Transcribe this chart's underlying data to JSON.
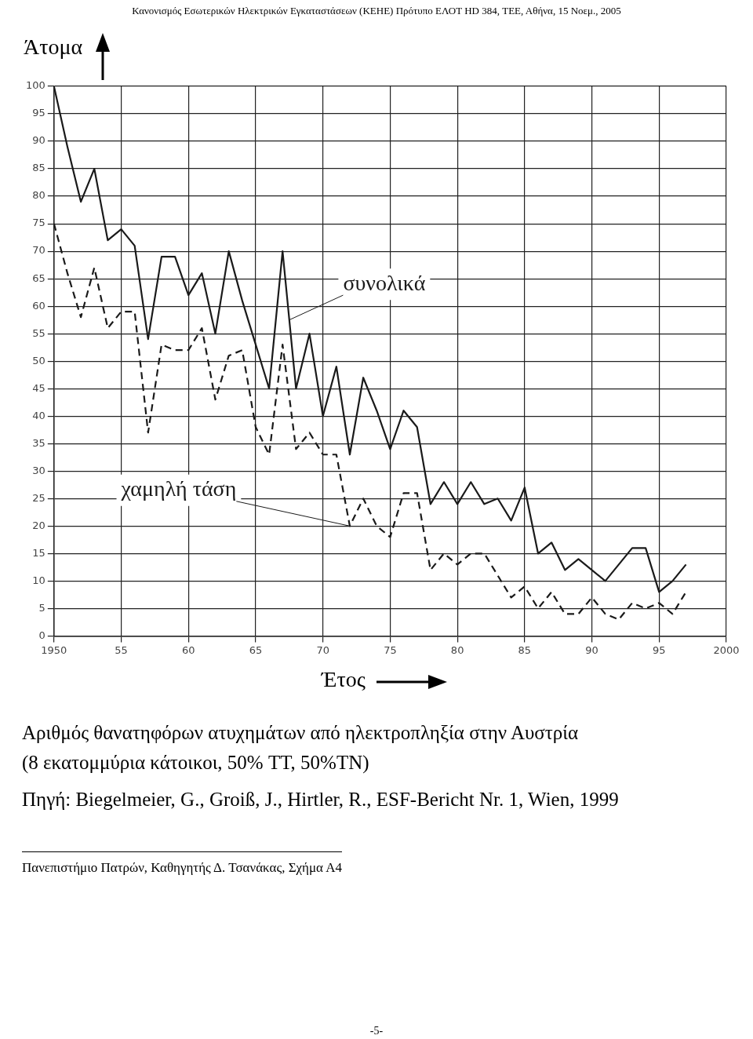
{
  "chart_data": {
    "type": "line",
    "title": "Αριθμός θανατηφόρων ατυχημάτων από ηλεκτροπληξία στην Αυστρία",
    "subtitle": "(8 εκατομμύρια κάτοικοι, 50% TT, 50%TN)",
    "xlabel": "Έτος",
    "ylabel": "Άτομα",
    "x": [
      1950,
      1951,
      1952,
      1953,
      1954,
      1955,
      1956,
      1957,
      1958,
      1959,
      1960,
      1961,
      1962,
      1963,
      1964,
      1965,
      1966,
      1967,
      1968,
      1969,
      1970,
      1971,
      1972,
      1973,
      1974,
      1975,
      1976,
      1977,
      1978,
      1979,
      1980,
      1981,
      1982,
      1983,
      1984,
      1985,
      1986,
      1987,
      1988,
      1989,
      1990,
      1991,
      1992,
      1993,
      1994,
      1995,
      1996,
      1997
    ],
    "series": [
      {
        "name": "συνολικά",
        "color": "#1a1a1a",
        "line_style": "solid",
        "values": [
          100,
          89,
          79,
          85,
          72,
          74,
          71,
          54,
          69,
          69,
          62,
          66,
          55,
          70,
          61,
          53,
          45,
          70,
          45,
          55,
          40,
          49,
          33,
          47,
          41,
          34,
          41,
          38,
          24,
          28,
          24,
          28,
          24,
          25,
          21,
          27,
          15,
          17,
          12,
          14,
          12,
          10,
          13,
          16,
          16,
          8,
          10,
          13
        ]
      },
      {
        "name": "χαμηλή τάση",
        "color": "#1a1a1a",
        "line_style": "dashed",
        "values": [
          75,
          66,
          58,
          67,
          56,
          59,
          59,
          37,
          53,
          52,
          52,
          56,
          43,
          51,
          52,
          38,
          33,
          53,
          34,
          37,
          33,
          33,
          20,
          25,
          20,
          18,
          26,
          26,
          12,
          15,
          13,
          15,
          15,
          11,
          7,
          9,
          5,
          8,
          4,
          4,
          7,
          4,
          3,
          6,
          5,
          6,
          4,
          8
        ]
      }
    ],
    "xlim": [
      1950,
      2000
    ],
    "xticks": [
      1950,
      {
        "value": 1955,
        "label": "55"
      },
      {
        "value": 1960,
        "label": "60"
      },
      {
        "value": 1965,
        "label": "65"
      },
      {
        "value": 1970,
        "label": "70"
      },
      {
        "value": 1975,
        "label": "75"
      },
      {
        "value": 1980,
        "label": "80"
      },
      {
        "value": 1985,
        "label": "85"
      },
      {
        "value": 1990,
        "label": "90"
      },
      {
        "value": 1995,
        "label": "95"
      },
      2000
    ],
    "ylim": [
      0,
      100
    ],
    "yticks": [
      0,
      5,
      10,
      15,
      20,
      25,
      30,
      35,
      40,
      45,
      50,
      55,
      60,
      65,
      70,
      75,
      80,
      85,
      90,
      95,
      100
    ],
    "grid": true,
    "legend": false,
    "marker": "none",
    "annotations": [
      "Κανονισμός Εσωτερικών Ηλεκτρικών Εγκαταστάσεων (ΚΕΗΕ) Πρότυπο ΕΛΟΤ HD 384, ΤΕΕ, Αθήνα, 15 Νοεμ., 2005",
      "Πηγή:  Biegelmeier, G., Groiß, J., Hirtler, R., ESF-Bericht Nr. 1, Wien, 1999",
      "Πανεπιστήμιο Πατρών, Καθηγητής Δ. Τσανάκας, Σχήμα Α4",
      "-5-"
    ]
  }
}
